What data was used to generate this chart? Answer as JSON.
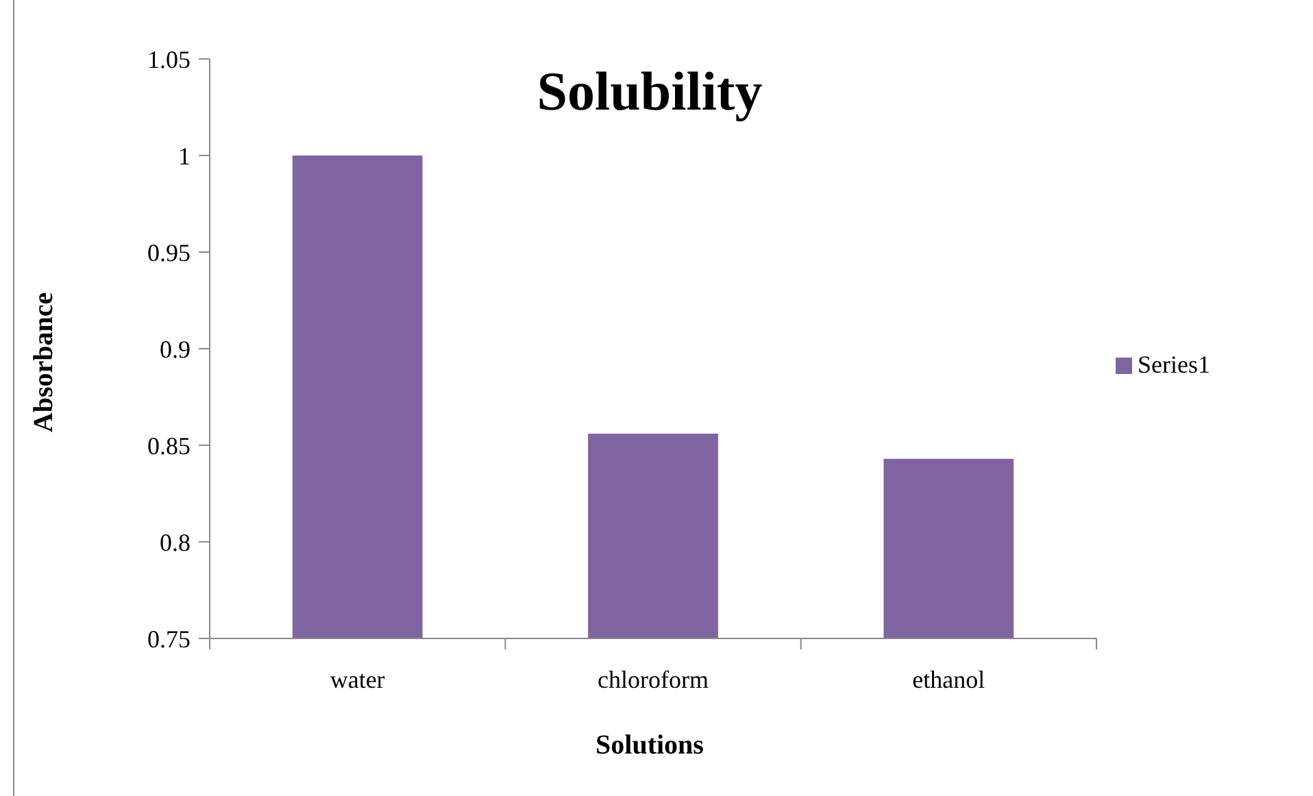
{
  "chart_data": {
    "type": "bar",
    "title": "Solubility",
    "xlabel": "Solutions",
    "ylabel": "Absorbance",
    "categories": [
      "water",
      "chloroform",
      "ethanol"
    ],
    "series": [
      {
        "name": "Series1",
        "color": "#8064a2",
        "values": [
          1.0,
          0.856,
          0.843
        ]
      }
    ],
    "ylim": [
      0.75,
      1.05
    ],
    "yticks": [
      0.75,
      0.8,
      0.85,
      0.9,
      0.95,
      1,
      1.05
    ],
    "grid": false,
    "legend": "right"
  }
}
